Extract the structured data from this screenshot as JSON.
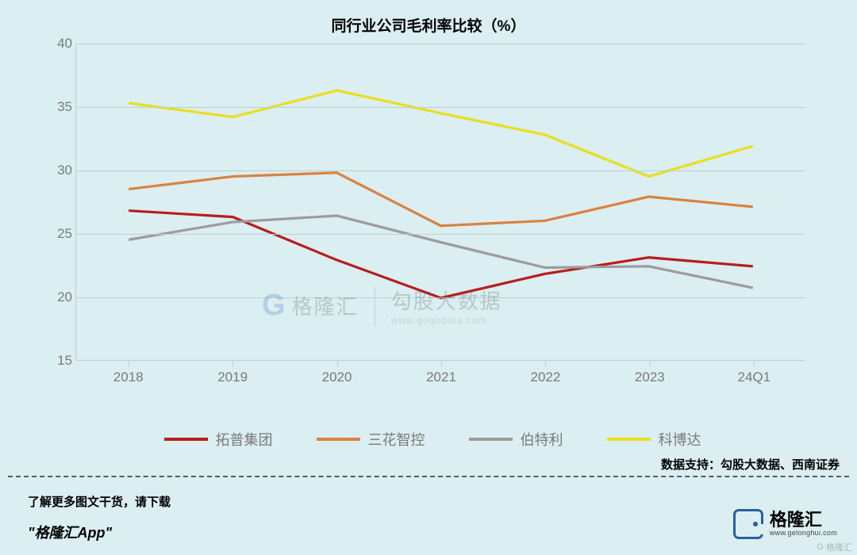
{
  "chart": {
    "title": "同行业公司毛利率比较（%）",
    "type": "line",
    "background_color": "#dbeef1",
    "grid_color": "#b9d0d3",
    "title_fontsize": 19,
    "axis_label_fontsize": 17,
    "axis_label_color": "#7a7a7a",
    "ylim": [
      15,
      40
    ],
    "ytick_step": 5,
    "yticks": [
      15,
      20,
      25,
      30,
      35,
      40
    ],
    "categories": [
      "2018",
      "2019",
      "2020",
      "2021",
      "2022",
      "2023",
      "24Q1"
    ],
    "line_width": 3.2,
    "series": [
      {
        "name": "拓普集团",
        "color": "#b81d1d",
        "values": [
          26.8,
          26.3,
          22.9,
          19.9,
          21.8,
          23.1,
          22.4
        ]
      },
      {
        "name": "三花智控",
        "color": "#d98241",
        "values": [
          28.5,
          29.5,
          29.8,
          25.6,
          26.0,
          27.9,
          27.1
        ]
      },
      {
        "name": "伯特利",
        "color": "#9c9c9c",
        "values": [
          24.5,
          25.9,
          26.4,
          24.3,
          22.3,
          22.4,
          20.7
        ]
      },
      {
        "name": "科博达",
        "color": "#e8df1c",
        "values": [
          35.3,
          34.2,
          36.3,
          34.5,
          32.8,
          29.5,
          31.9
        ]
      }
    ],
    "legend_fontsize": 18
  },
  "data_support": "数据支持：勾股大数据、西南证券",
  "footer": {
    "line1": "了解更多图文干货，请下载",
    "line2": "\"格隆汇App\""
  },
  "watermark": {
    "left_brand": "格隆汇",
    "right_brand": "勾股大数据",
    "right_url": "www.gogudata.com"
  },
  "logo": {
    "zh": "格隆汇",
    "en": "www.gelonghui.com"
  }
}
